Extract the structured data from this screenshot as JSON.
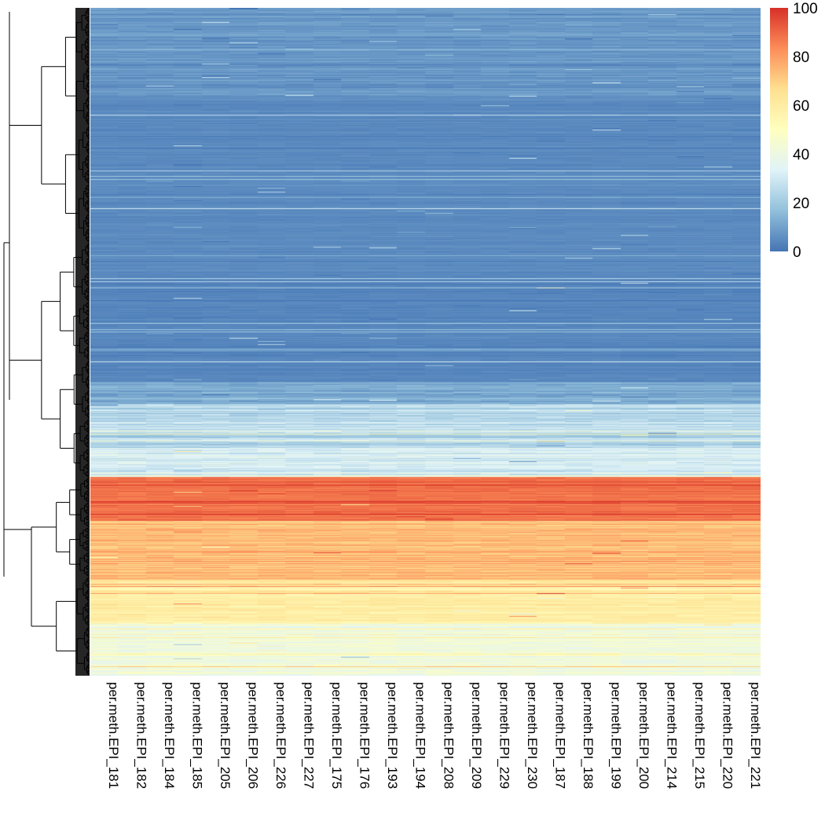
{
  "chart_data": {
    "type": "heatmap",
    "title": "",
    "xlabel": "",
    "ylabel": "",
    "columns": [
      "per.meth.EPI_181",
      "per.meth.EPI_182",
      "per.meth.EPI_184",
      "per.meth.EPI_185",
      "per.meth.EPI_205",
      "per.meth.EPI_206",
      "per.meth.EPI_226",
      "per.meth.EPI_227",
      "per.meth.EPI_175",
      "per.meth.EPI_176",
      "per.meth.EPI_193",
      "per.meth.EPI_194",
      "per.meth.EPI_208",
      "per.meth.EPI_209",
      "per.meth.EPI_229",
      "per.meth.EPI_230",
      "per.meth.EPI_187",
      "per.meth.EPI_188",
      "per.meth.EPI_199",
      "per.meth.EPI_200",
      "per.meth.EPI_214",
      "per.meth.EPI_215",
      "per.meth.EPI_220",
      "per.meth.EPI_221"
    ],
    "row_blocks": [
      {
        "rows": 120,
        "mean": 8,
        "spread": 4
      },
      {
        "rows": 240,
        "mean": 5,
        "spread": 2
      },
      {
        "rows": 150,
        "mean": 4,
        "spread": 2
      },
      {
        "rows": 30,
        "mean": 12,
        "spread": 6
      },
      {
        "rows": 60,
        "mean": 25,
        "spread": 8
      },
      {
        "rows": 40,
        "mean": 32,
        "spread": 8
      },
      {
        "rows": 60,
        "mean": 88,
        "spread": 5
      },
      {
        "rows": 80,
        "mean": 74,
        "spread": 7
      },
      {
        "rows": 60,
        "mean": 60,
        "spread": 8
      },
      {
        "rows": 70,
        "mean": 42,
        "spread": 8
      }
    ],
    "scale": {
      "min": 0,
      "max": 100,
      "ticks": [
        "0",
        "20",
        "40",
        "60",
        "80",
        "100"
      ],
      "colors": [
        "#4575b4",
        "#91bfdb",
        "#e0f3f8",
        "#ffffbf",
        "#fee090",
        "#fc8d59",
        "#d73027"
      ]
    },
    "dendrogram": true
  }
}
